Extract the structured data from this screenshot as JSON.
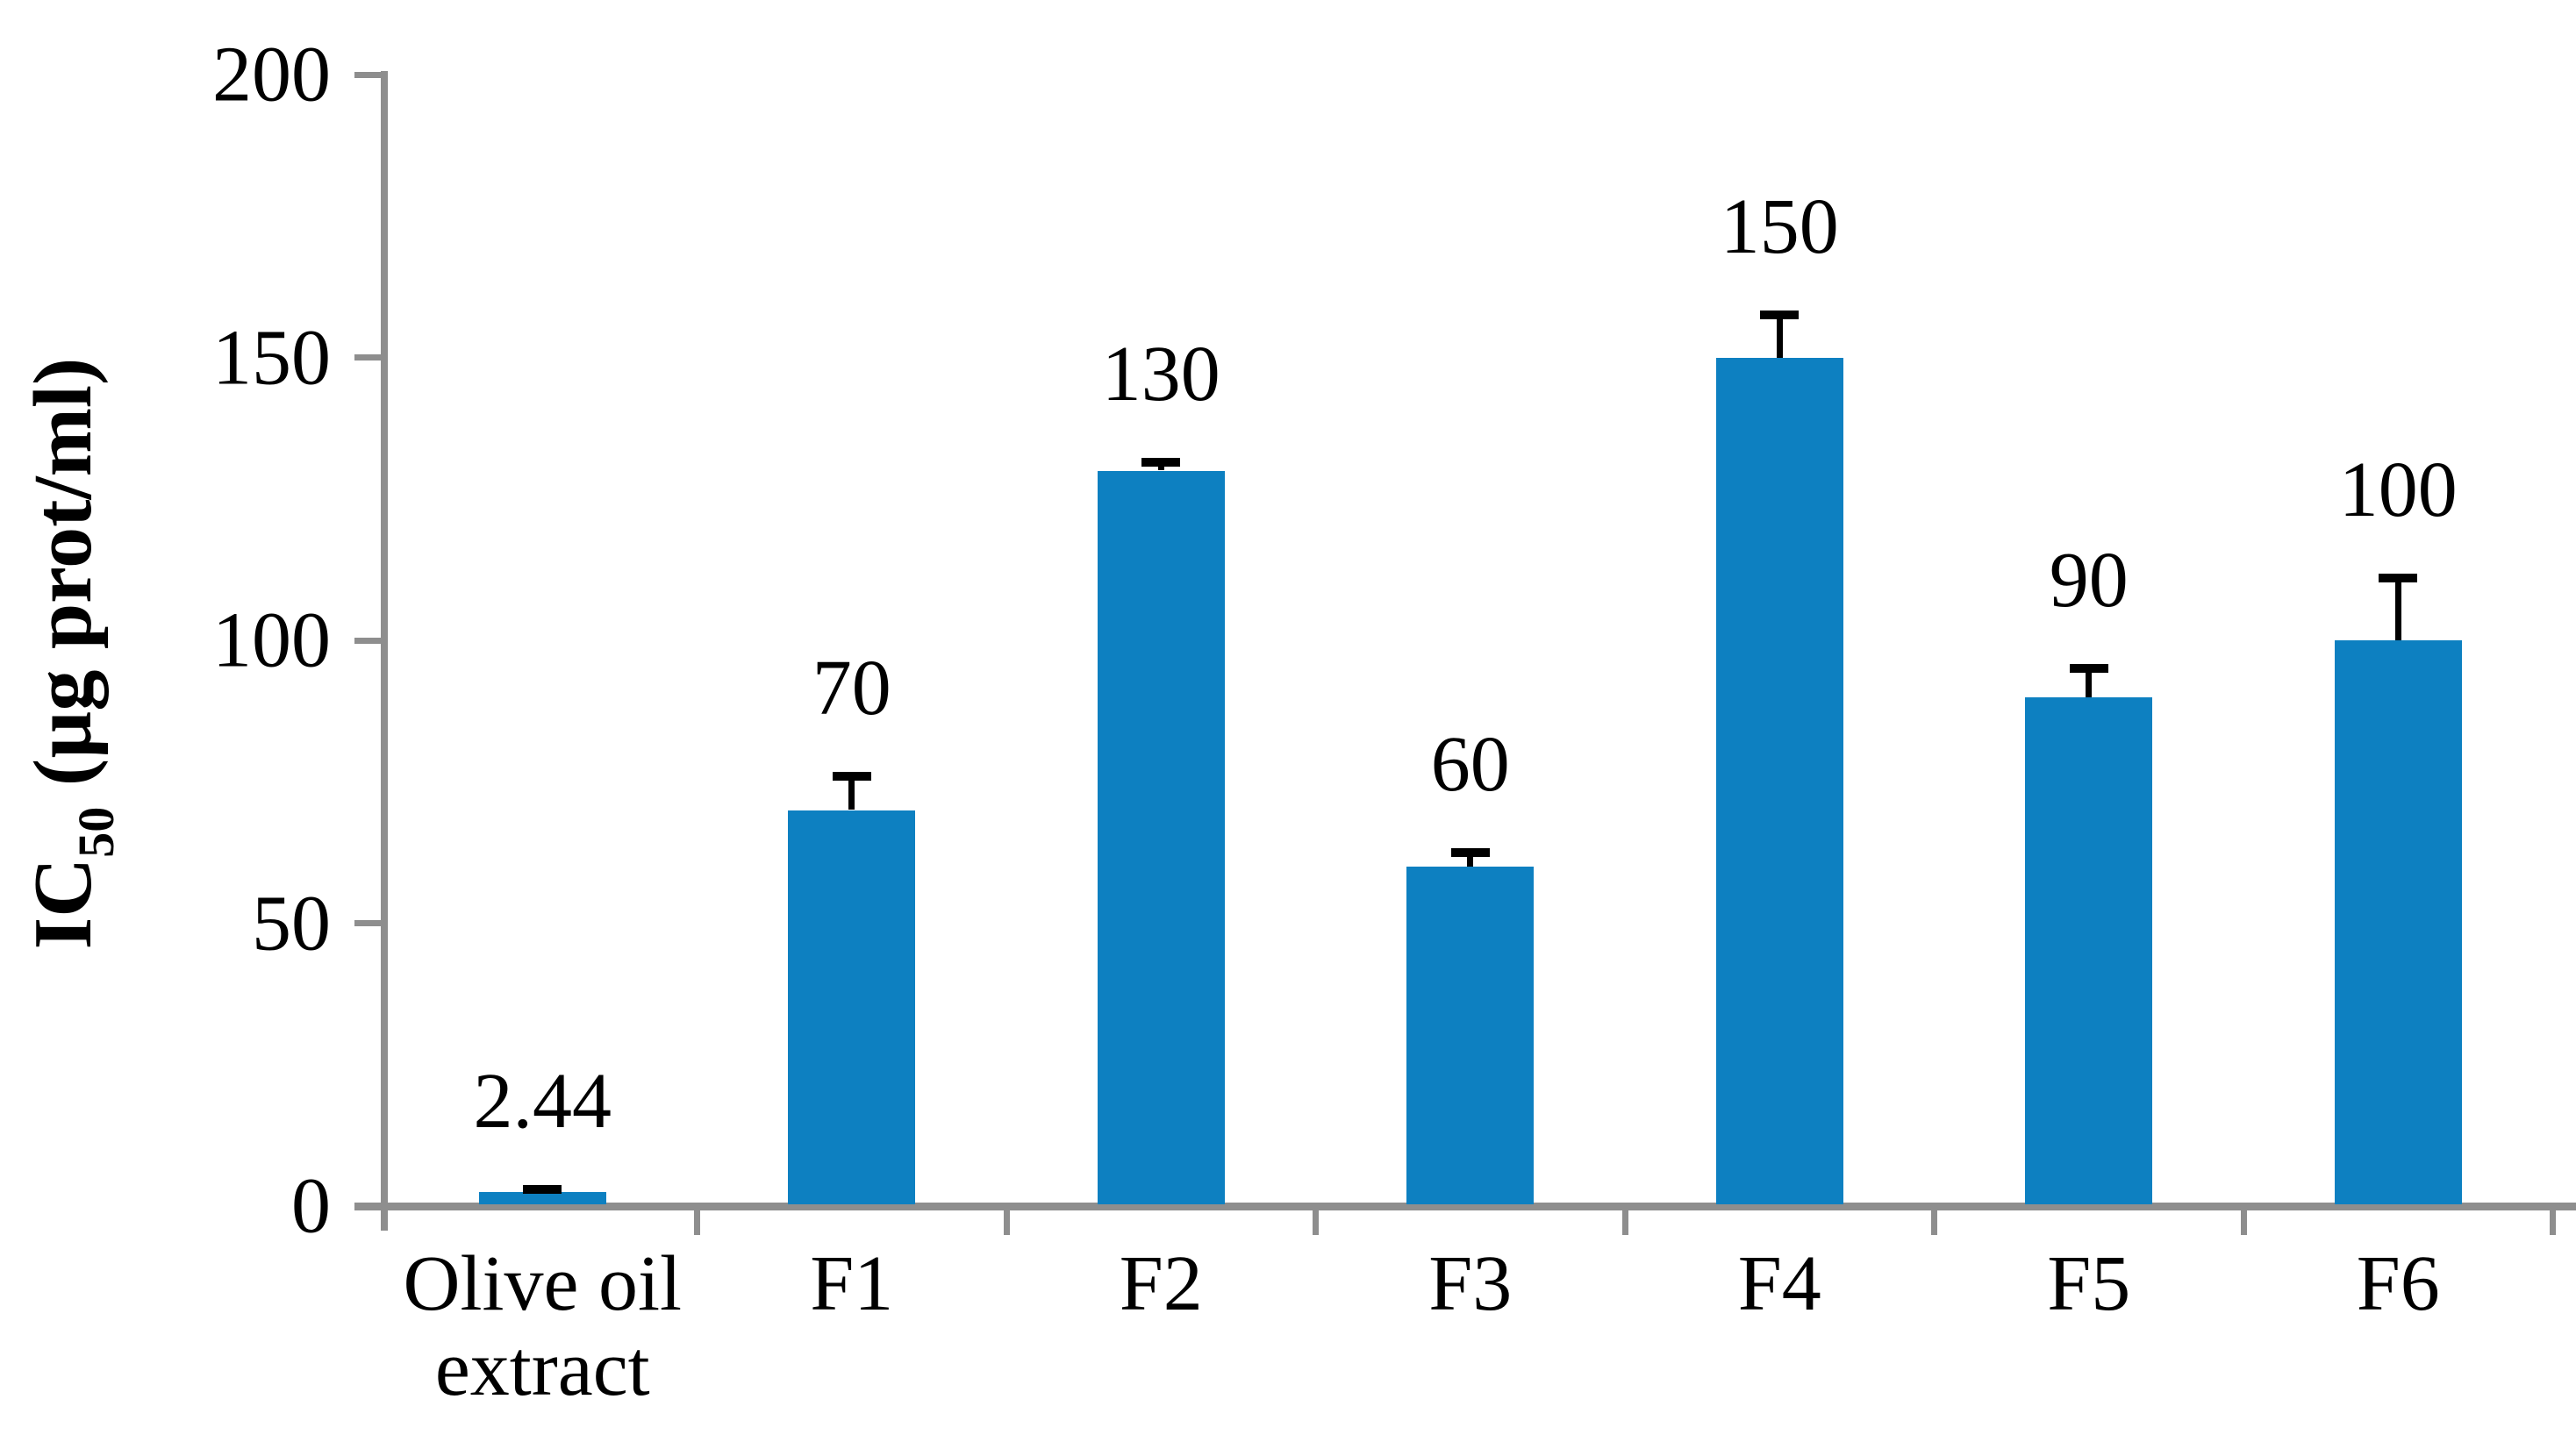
{
  "chart_data": {
    "type": "bar",
    "title": "",
    "categories": [
      "Olive oil extract",
      "F1",
      "F2",
      "F3",
      "F4",
      "F5",
      "F6"
    ],
    "values": [
      2.44,
      70,
      130,
      60,
      150,
      90,
      100
    ],
    "error_plus": [
      0.5,
      6,
      1.5,
      2.5,
      7.5,
      5,
      11
    ],
    "data_labels": [
      "2.44",
      "70",
      "130",
      "60",
      "150",
      "90",
      "100"
    ],
    "ylabel": "IC50 (µg prot/ml)",
    "ylabel_parts": {
      "prefix": "IC",
      "sub": "50",
      "suffix": " (µg prot/ml)"
    },
    "xlabel": "",
    "yticks": [
      0,
      50,
      100,
      150,
      200
    ],
    "ylim": [
      0,
      200
    ],
    "grid": false,
    "legend": null,
    "bar_color": "#0d80c1",
    "axis_color": "#8e8e8e",
    "error_color": "#000000",
    "text_color": "#000000"
  }
}
